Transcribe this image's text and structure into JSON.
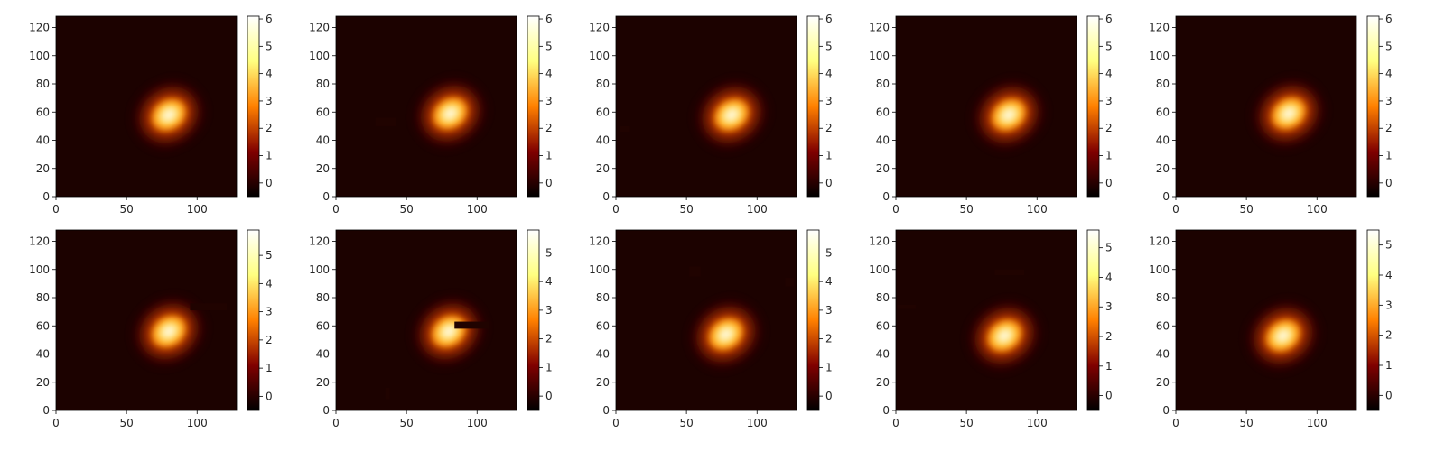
{
  "chart_data": [
    {
      "type": "heatmap",
      "x_ticks": [
        0,
        50,
        100
      ],
      "y_ticks": [
        0,
        20,
        40,
        60,
        80,
        100,
        120
      ],
      "xlim": [
        0,
        128
      ],
      "ylim": [
        0,
        128
      ],
      "colormap": "afmhot",
      "colorbar_range": [
        -0.5,
        6.1
      ],
      "colorbar_ticks": [
        0,
        1,
        2,
        3,
        4,
        5,
        6
      ],
      "blob_center": [
        80,
        58
      ],
      "occlusions": []
    },
    {
      "type": "heatmap",
      "x_ticks": [
        0,
        50,
        100
      ],
      "y_ticks": [
        0,
        20,
        40,
        60,
        80,
        100,
        120
      ],
      "xlim": [
        0,
        128
      ],
      "ylim": [
        0,
        128
      ],
      "colormap": "afmhot",
      "colorbar_range": [
        -0.5,
        6.1
      ],
      "colorbar_ticks": [
        0,
        1,
        2,
        3,
        4,
        5,
        6
      ],
      "blob_center": [
        81,
        59
      ],
      "occlusions": [
        [
          28,
          50,
          43,
          56
        ]
      ]
    },
    {
      "type": "heatmap",
      "x_ticks": [
        0,
        50,
        100
      ],
      "y_ticks": [
        0,
        20,
        40,
        60,
        80,
        100,
        120
      ],
      "xlim": [
        0,
        128
      ],
      "ylim": [
        0,
        128
      ],
      "colormap": "afmhot",
      "colorbar_range": [
        -0.5,
        6.1
      ],
      "colorbar_ticks": [
        0,
        1,
        2,
        3,
        4,
        5,
        6
      ],
      "blob_center": [
        82,
        58
      ],
      "occlusions": [
        [
          3,
          46,
          10,
          50
        ]
      ]
    },
    {
      "type": "heatmap",
      "x_ticks": [
        0,
        50,
        100
      ],
      "y_ticks": [
        0,
        20,
        40,
        60,
        80,
        100,
        120
      ],
      "xlim": [
        0,
        128
      ],
      "ylim": [
        0,
        128
      ],
      "colormap": "afmhot",
      "colorbar_range": [
        -0.5,
        6.1
      ],
      "colorbar_ticks": [
        0,
        1,
        2,
        3,
        4,
        5,
        6
      ],
      "blob_center": [
        80,
        58
      ],
      "occlusions": []
    },
    {
      "type": "heatmap",
      "x_ticks": [
        0,
        50,
        100
      ],
      "y_ticks": [
        0,
        20,
        40,
        60,
        80,
        100,
        120
      ],
      "xlim": [
        0,
        128
      ],
      "ylim": [
        0,
        128
      ],
      "colormap": "afmhot",
      "colorbar_range": [
        -0.5,
        6.1
      ],
      "colorbar_ticks": [
        0,
        1,
        2,
        3,
        4,
        5,
        6
      ],
      "blob_center": [
        80,
        59
      ],
      "occlusions": []
    },
    {
      "type": "heatmap",
      "x_ticks": [
        0,
        50,
        100
      ],
      "y_ticks": [
        0,
        20,
        40,
        60,
        80,
        100,
        120
      ],
      "xlim": [
        0,
        128
      ],
      "ylim": [
        0,
        128
      ],
      "colormap": "afmhot",
      "colorbar_range": [
        -0.5,
        5.9
      ],
      "colorbar_ticks": [
        0,
        1,
        2,
        3,
        4,
        5
      ],
      "blob_center": [
        80,
        56
      ],
      "occlusions": [
        [
          95,
          71,
          121,
          76
        ]
      ]
    },
    {
      "type": "heatmap",
      "x_ticks": [
        0,
        50,
        100
      ],
      "y_ticks": [
        0,
        20,
        40,
        60,
        80,
        100,
        120
      ],
      "xlim": [
        0,
        128
      ],
      "ylim": [
        0,
        128
      ],
      "colormap": "afmhot",
      "colorbar_range": [
        -0.5,
        5.8
      ],
      "colorbar_ticks": [
        0,
        1,
        2,
        3,
        4,
        5
      ],
      "blob_center": [
        80,
        56
      ],
      "occlusions": [
        [
          84,
          58,
          109,
          63
        ],
        [
          35,
          8,
          38,
          16
        ]
      ]
    },
    {
      "type": "heatmap",
      "x_ticks": [
        0,
        50,
        100
      ],
      "y_ticks": [
        0,
        20,
        40,
        60,
        80,
        100,
        120
      ],
      "xlim": [
        0,
        128
      ],
      "ylim": [
        0,
        128
      ],
      "colormap": "afmhot",
      "colorbar_range": [
        -0.5,
        5.8
      ],
      "colorbar_ticks": [
        0,
        1,
        2,
        3,
        4,
        5
      ],
      "blob_center": [
        78,
        54
      ],
      "occlusions": [
        [
          52,
          95,
          60,
          102
        ],
        [
          120,
          88,
          126,
          94
        ]
      ]
    },
    {
      "type": "heatmap",
      "x_ticks": [
        0,
        50,
        100
      ],
      "y_ticks": [
        0,
        20,
        40,
        60,
        80,
        100,
        120
      ],
      "xlim": [
        0,
        128
      ],
      "ylim": [
        0,
        128
      ],
      "colormap": "afmhot",
      "colorbar_range": [
        -0.5,
        5.6
      ],
      "colorbar_ticks": [
        0,
        1,
        2,
        3,
        4,
        5
      ],
      "blob_center": [
        77,
        53
      ],
      "occlusions": [
        [
          70,
          96,
          91,
          100
        ],
        [
          1,
          72,
          14,
          75
        ]
      ]
    },
    {
      "type": "heatmap",
      "x_ticks": [
        0,
        50,
        100
      ],
      "y_ticks": [
        0,
        20,
        40,
        60,
        80,
        100,
        120
      ],
      "xlim": [
        0,
        128
      ],
      "ylim": [
        0,
        128
      ],
      "colormap": "afmhot",
      "colorbar_range": [
        -0.5,
        5.5
      ],
      "colorbar_ticks": [
        0,
        1,
        2,
        3,
        4,
        5
      ],
      "blob_center": [
        76,
        53
      ],
      "occlusions": []
    }
  ]
}
